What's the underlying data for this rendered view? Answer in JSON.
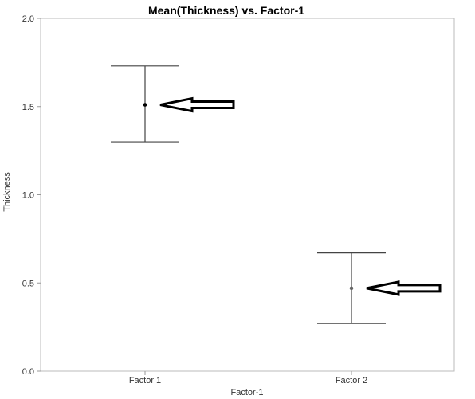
{
  "chart_data": {
    "type": "scatter",
    "title": "Mean(Thickness) vs. Factor-1",
    "xlabel": "Factor-1",
    "ylabel": "Thickness",
    "categories": [
      "Factor 1",
      "Factor 2"
    ],
    "ylim": [
      0.0,
      2.0
    ],
    "yticks": [
      "0.0",
      "0.5",
      "1.0",
      "1.5",
      "2.0"
    ],
    "series": [
      {
        "means": [
          1.51,
          0.47
        ],
        "lower": [
          1.3,
          0.27
        ],
        "upper": [
          1.73,
          0.67
        ]
      }
    ],
    "annotations": [
      {
        "type": "arrow",
        "points_to": "Factor 1"
      },
      {
        "type": "arrow",
        "points_to": "Factor 2"
      }
    ],
    "grid": false,
    "colors": {
      "errorbar": "#444444",
      "mean_point_1": "#000000",
      "mean_point_2": "#666666",
      "arrow": "#000000",
      "frame": "#bbbbbb"
    }
  }
}
